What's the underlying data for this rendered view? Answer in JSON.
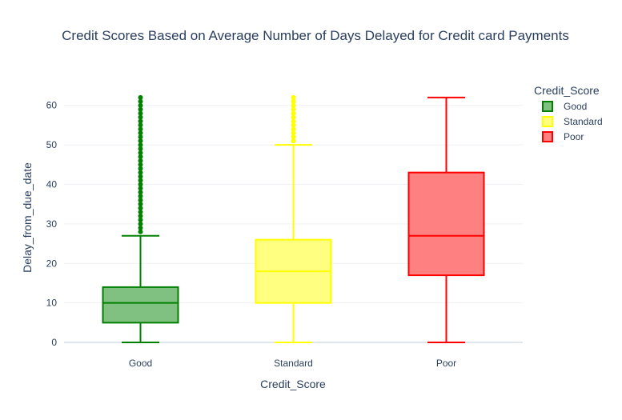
{
  "chart_data": {
    "type": "box",
    "title": "Credit Scores Based on Average Number of Days Delayed for Credit card Payments",
    "xlabel": "Credit_Score",
    "ylabel": "Delay_from_due_date",
    "ylim": [
      -1,
      65
    ],
    "yticks": [
      0,
      10,
      20,
      30,
      40,
      50,
      60
    ],
    "grid": true,
    "legend": {
      "title": "Credit_Score",
      "placement": "top-right"
    },
    "categories": [
      "Good",
      "Standard",
      "Poor"
    ],
    "series": [
      {
        "name": "Good",
        "color": "#008000",
        "fill": "#80c080",
        "min": 0,
        "q1": 5,
        "median": 10,
        "q3": 14,
        "max": 27,
        "outliers": {
          "from": 28,
          "to": 62
        }
      },
      {
        "name": "Standard",
        "color": "#ffff00",
        "fill": "#ffff80",
        "min": 0,
        "q1": 10,
        "median": 18,
        "q3": 26,
        "max": 50,
        "outliers": {
          "from": 51,
          "to": 62
        }
      },
      {
        "name": "Poor",
        "color": "#ff0000",
        "fill": "#ff8080",
        "min": 0,
        "q1": 17,
        "median": 27,
        "q3": 43,
        "max": 62,
        "outliers": null
      }
    ]
  }
}
